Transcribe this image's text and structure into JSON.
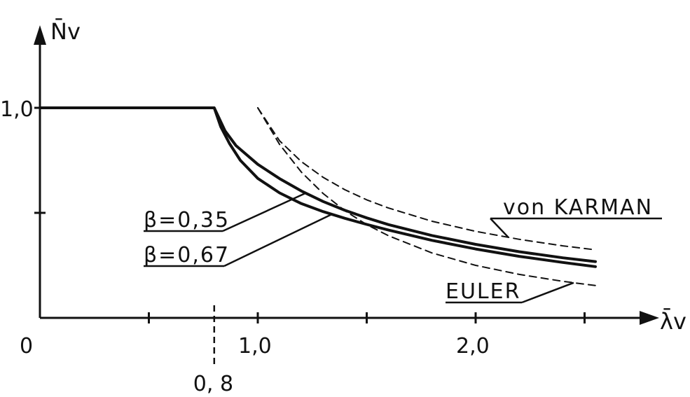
{
  "chart_data": {
    "type": "line",
    "title": "",
    "xlabel": "λ̄v",
    "ylabel": "N̄v",
    "xlim": [
      0,
      2.6
    ],
    "ylim": [
      0,
      1.0
    ],
    "origin_label": "0",
    "x_tick_labels": [
      {
        "value": 1.0,
        "label": "1,0"
      },
      {
        "value": 2.0,
        "label": "2,0"
      }
    ],
    "x_ticks": [
      0.5,
      0.8,
      1.0,
      1.5,
      2.0,
      2.5
    ],
    "y_tick_labels": [
      {
        "value": 1.0,
        "label": "1,0"
      }
    ],
    "y_ticks": [
      0.5,
      1.0
    ],
    "reference_line": {
      "x": 0.8,
      "label": "0, 8"
    },
    "series": [
      {
        "name": "β=0,35",
        "style": "solid",
        "x": [
          0,
          0.8,
          0.85,
          0.9,
          1.0,
          1.1,
          1.2,
          1.3,
          1.4,
          1.5,
          1.6,
          1.8,
          2.0,
          2.2,
          2.4,
          2.55
        ],
        "y": [
          1.0,
          1.0,
          0.89,
          0.82,
          0.731,
          0.663,
          0.604,
          0.554,
          0.512,
          0.476,
          0.444,
          0.392,
          0.35,
          0.315,
          0.286,
          0.268
        ]
      },
      {
        "name": "β=0,67",
        "style": "solid",
        "x": [
          0,
          0.8,
          0.83,
          0.87,
          0.92,
          1.0,
          1.1,
          1.2,
          1.3,
          1.4,
          1.5,
          1.6,
          1.8,
          2.0,
          2.2,
          2.4,
          2.55
        ],
        "y": [
          1.0,
          1.0,
          0.91,
          0.83,
          0.75,
          0.664,
          0.595,
          0.544,
          0.506,
          0.474,
          0.445,
          0.418,
          0.369,
          0.328,
          0.293,
          0.264,
          0.244
        ]
      },
      {
        "name": "von KARMAN",
        "style": "dashed",
        "x": [
          1.0,
          1.1,
          1.2,
          1.3,
          1.4,
          1.5,
          1.6,
          1.8,
          2.0,
          2.2,
          2.4,
          2.55
        ],
        "y": [
          1.0,
          0.843,
          0.744,
          0.669,
          0.61,
          0.562,
          0.523,
          0.46,
          0.412,
          0.374,
          0.343,
          0.324
        ]
      },
      {
        "name": "EULER",
        "style": "dashed",
        "x": [
          1.0,
          1.1,
          1.2,
          1.3,
          1.4,
          1.5,
          1.6,
          1.8,
          2.0,
          2.2,
          2.4,
          2.55
        ],
        "y": [
          1.0,
          0.826,
          0.694,
          0.592,
          0.51,
          0.444,
          0.391,
          0.309,
          0.25,
          0.207,
          0.174,
          0.154
        ]
      }
    ],
    "annotations": [
      {
        "series": "β=0,35",
        "label": "β=0,35",
        "at_x": 1.22
      },
      {
        "series": "β=0,67",
        "label": "β=0,67",
        "at_x": 1.34
      },
      {
        "series": "von KARMAN",
        "label": "von KARMAN",
        "at_x": 2.15
      },
      {
        "series": "EULER",
        "label": "EULER",
        "at_x": 2.45
      }
    ],
    "grid": false,
    "legend": "none"
  }
}
